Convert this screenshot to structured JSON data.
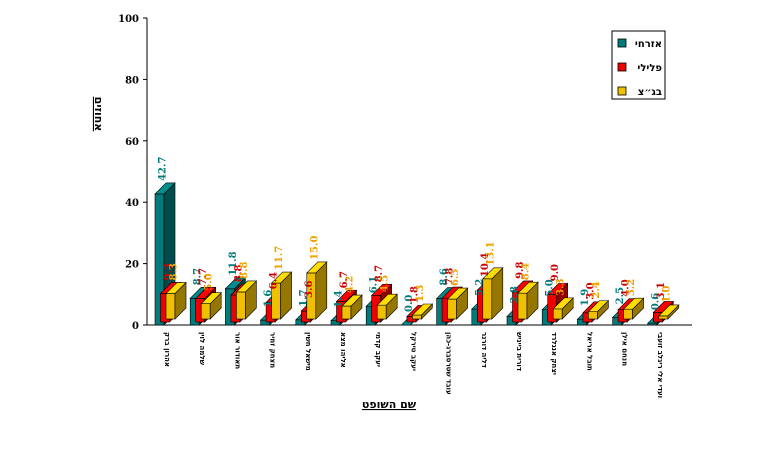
{
  "chart_data": {
    "type": "bar",
    "title": "",
    "xlabel": "שם השופט",
    "ylabel": "אחוזים",
    "ylim": [
      0,
      100
    ],
    "yticks": [
      0,
      20,
      40,
      60,
      80,
      100
    ],
    "legend_position": "top-right",
    "categories": [
      "אהרון ברק",
      "שלמה לוין",
      "תאודור אור",
      "מצחק זמיר",
      "מישאל חשין",
      "אליהו מצא",
      "יעקב קדמי",
      "יעקב טירקל",
      "עובד שטרסברג-כהן",
      "דליה דורנר",
      "דורית בייניש",
      "יצחק אנגלרד",
      "תובל אריאל",
      "מנחם אילן",
      "ועדי אלי ריגלב זועבי"
    ],
    "series": [
      {
        "name": "אזרחי",
        "color": "#007b7b",
        "values": [
          42.7,
          8.7,
          11.8,
          1.6,
          1.7,
          1.4,
          6.1,
          0.0,
          8.6,
          5.2,
          2.8,
          5.0,
          1.9,
          2.5,
          0.6
        ]
      },
      {
        "name": "פלילי",
        "color": "#ee0000",
        "values": [
          9.3,
          7.7,
          8.8,
          6.4,
          3.6,
          6.7,
          8.7,
          1.8,
          7.8,
          10.4,
          9.8,
          9.0,
          3.0,
          4.0,
          3.1
        ]
      },
      {
        "name": "בג״צ",
        "color": "#f0c000",
        "values": [
          8.3,
          5.0,
          8.8,
          11.7,
          15.0,
          4.2,
          4.5,
          1.3,
          6.5,
          13.1,
          8.4,
          3.3,
          2.4,
          3.2,
          1.0
        ]
      }
    ]
  }
}
